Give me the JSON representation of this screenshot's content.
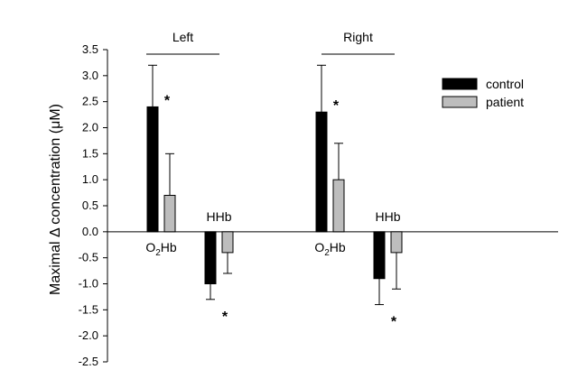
{
  "chart_data": {
    "type": "bar",
    "ylabel": "Maximal Δ concentration (μM)",
    "ylim": [
      -2.5,
      3.5
    ],
    "yticks": [
      "3.5",
      "3.0",
      "2.5",
      "2.0",
      "1.5",
      "1.0",
      "0.5",
      "0.0",
      "-0.5",
      "-1.0",
      "-1.5",
      "-2.0",
      "-2.5"
    ],
    "grid": false,
    "legend": {
      "position": "top-right"
    },
    "groups": [
      {
        "label": "Left",
        "categories": [
          "O2Hb",
          "HHb"
        ]
      },
      {
        "label": "Right",
        "categories": [
          "O2Hb",
          "HHb"
        ]
      }
    ],
    "series": [
      {
        "name": "control",
        "color": "#000000",
        "values": [
          2.4,
          -1.0,
          2.3,
          -0.9
        ],
        "error": [
          0.8,
          0.3,
          0.9,
          0.5
        ]
      },
      {
        "name": "patient",
        "color": "#bdbdbd",
        "values": [
          0.7,
          -0.4,
          1.0,
          -0.4
        ],
        "error": [
          0.8,
          0.4,
          0.7,
          0.7
        ]
      }
    ],
    "category_labels": [
      {
        "base": "O",
        "sub": "2",
        "rest": "Hb"
      },
      {
        "base": "HHb",
        "sub": "",
        "rest": ""
      },
      {
        "base": "O",
        "sub": "2",
        "rest": "Hb"
      },
      {
        "base": "HHb",
        "sub": "",
        "rest": ""
      }
    ],
    "annotations": [
      "*",
      "*",
      "*",
      "*"
    ]
  }
}
